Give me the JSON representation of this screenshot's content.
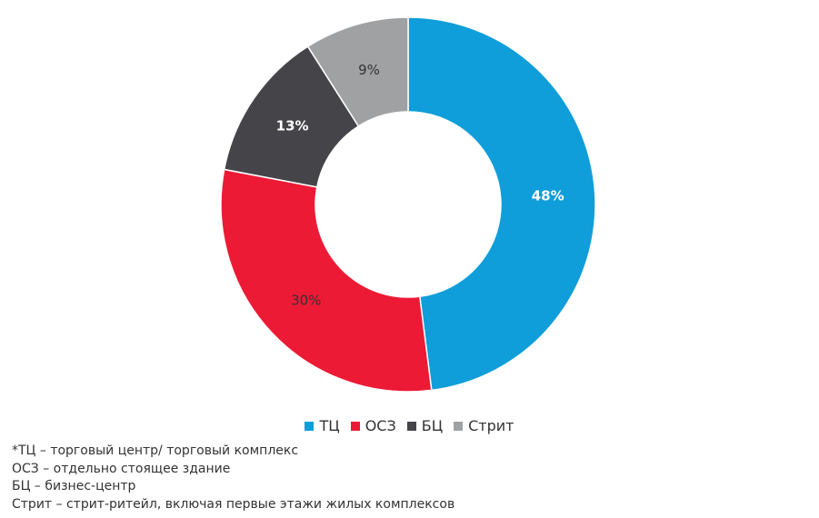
{
  "chart_data": {
    "type": "pie",
    "donut": true,
    "categories": [
      "ТЦ",
      "ОСЗ",
      "БЦ",
      "Стрит"
    ],
    "values": [
      48,
      30,
      13,
      9
    ],
    "data_labels": [
      "48%",
      "30%",
      "13%",
      "9%"
    ],
    "colors": [
      "#0f9ed9",
      "#ed1a35",
      "#454449",
      "#a0a1a3"
    ],
    "label_colors": [
      "#ffffff",
      "#333333",
      "#ffffff",
      "#333333"
    ],
    "legend_position": "bottom"
  },
  "notes": [
    "*ТЦ – торговый центр/ торговый комплекс",
    "ОСЗ – отдельно стоящее здание",
    "БЦ – бизнес-центр",
    "Стрит – стрит-ритейл, включая первые этажи жилых комплексов"
  ]
}
